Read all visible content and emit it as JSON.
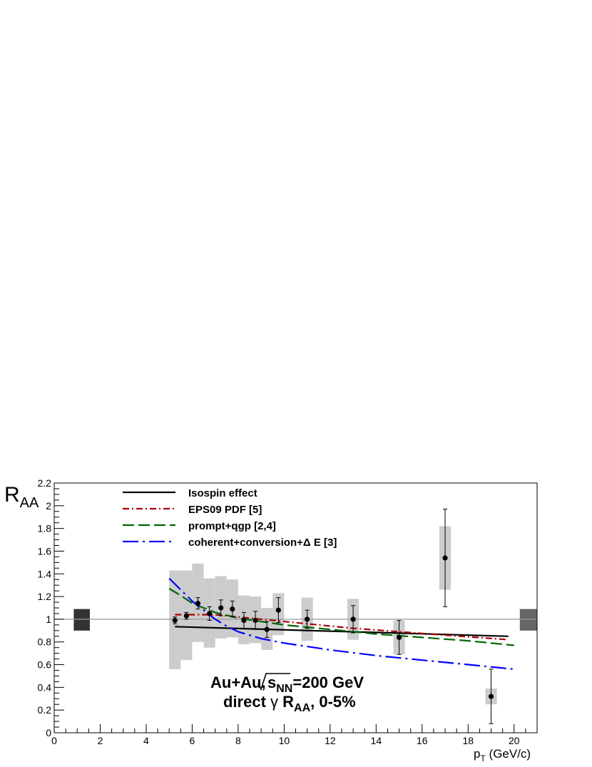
{
  "chart_data": {
    "type": "scatter",
    "xlabel": {
      "main": "p",
      "sub": "T",
      "unit": " (GeV/c)"
    },
    "ylabel": {
      "main": "R",
      "sub": "AA"
    },
    "xlim": [
      0,
      21
    ],
    "ylim": [
      0,
      2.2
    ],
    "xticks": [
      0,
      2,
      4,
      6,
      8,
      10,
      12,
      14,
      16,
      18,
      20
    ],
    "yticks": [
      0,
      0.2,
      0.4,
      0.6,
      0.8,
      1,
      1.2,
      1.4,
      1.6,
      1.8,
      2,
      2.2
    ],
    "reference_line": 1,
    "norm_boxes": [
      {
        "x": [
          0.85,
          1.55
        ],
        "y": [
          0.9,
          1.09
        ],
        "color": "#333333"
      },
      {
        "x": [
          20.25,
          21.0
        ],
        "y": [
          0.9,
          1.09
        ],
        "color": "#666666"
      }
    ],
    "data_points": [
      {
        "x": 5.25,
        "y": 0.99,
        "err": 0.03,
        "sys_y": [
          0.56,
          1.43
        ],
        "sys_x": [
          5.0,
          5.5
        ]
      },
      {
        "x": 5.75,
        "y": 1.03,
        "err": 0.03,
        "sys_y": [
          0.64,
          1.43
        ],
        "sys_x": [
          5.5,
          6.0
        ]
      },
      {
        "x": 6.25,
        "y": 1.14,
        "err": 0.05,
        "sys_y": [
          0.8,
          1.49
        ],
        "sys_x": [
          6.0,
          6.5
        ]
      },
      {
        "x": 6.75,
        "y": 1.05,
        "err": 0.06,
        "sys_y": [
          0.75,
          1.36
        ],
        "sys_x": [
          6.5,
          7.0
        ]
      },
      {
        "x": 7.25,
        "y": 1.1,
        "err": 0.07,
        "sys_y": [
          0.83,
          1.38
        ],
        "sys_x": [
          7.0,
          7.5
        ]
      },
      {
        "x": 7.75,
        "y": 1.09,
        "err": 0.07,
        "sys_y": [
          0.84,
          1.35
        ],
        "sys_x": [
          7.5,
          8.0
        ]
      },
      {
        "x": 8.25,
        "y": 0.99,
        "err": 0.07,
        "sys_y": [
          0.78,
          1.21
        ],
        "sys_x": [
          8.0,
          8.5
        ]
      },
      {
        "x": 8.75,
        "y": 0.99,
        "err": 0.08,
        "sys_y": [
          0.79,
          1.2
        ],
        "sys_x": [
          8.5,
          9.0
        ]
      },
      {
        "x": 9.25,
        "y": 0.91,
        "err": 0.07,
        "sys_y": [
          0.73,
          1.1
        ],
        "sys_x": [
          9.0,
          9.5
        ]
      },
      {
        "x": 9.75,
        "y": 1.08,
        "err": 0.11,
        "sys_y": [
          0.86,
          1.23
        ],
        "sys_x": [
          9.5,
          10.0
        ]
      },
      {
        "x": 11.0,
        "y": 1.0,
        "err": 0.08,
        "sys_y": [
          0.81,
          1.19
        ],
        "sys_x": [
          10.75,
          11.25
        ]
      },
      {
        "x": 13.0,
        "y": 1.0,
        "err": 0.12,
        "sys_y": [
          0.82,
          1.18
        ],
        "sys_x": [
          12.75,
          13.25
        ]
      },
      {
        "x": 15.0,
        "y": 0.84,
        "err": 0.15,
        "sys_y": [
          0.69,
          0.99
        ],
        "sys_x": [
          14.75,
          15.25
        ]
      },
      {
        "x": 17.0,
        "y": 1.54,
        "err": 0.43,
        "sys_y": [
          1.26,
          1.82
        ],
        "sys_x": [
          16.75,
          17.25
        ]
      },
      {
        "x": 19.0,
        "y": 0.32,
        "err": 0.24,
        "sys_y": [
          0.25,
          0.39
        ],
        "sys_x": [
          18.75,
          19.25
        ]
      }
    ],
    "series": [
      {
        "name": "Isospin effect",
        "color": "#000000",
        "dash": "solid",
        "x": [
          5.25,
          19.75
        ],
        "y": [
          0.935,
          0.85
        ]
      },
      {
        "name": "EPS09 PDF [5]",
        "color": "#aa0000",
        "dash": "dashdot",
        "x": [
          5.25,
          7,
          9,
          11,
          13,
          15,
          17,
          19.75
        ],
        "y": [
          1.04,
          1.04,
          1.0,
          0.96,
          0.92,
          0.89,
          0.86,
          0.82
        ]
      },
      {
        "name": "prompt+qgp [2,4]",
        "color": "#006600",
        "dash": "longdash",
        "x": [
          5.0,
          5.5,
          6,
          6.5,
          7,
          8,
          9,
          10,
          12,
          14,
          16,
          18,
          20
        ],
        "y": [
          1.27,
          1.21,
          1.14,
          1.1,
          1.06,
          1.01,
          0.98,
          0.95,
          0.91,
          0.87,
          0.84,
          0.81,
          0.77
        ]
      },
      {
        "name": "coherent+conversion+Δ E [3]",
        "color": "#0000ff",
        "dash": "longdashdot",
        "x": [
          5.0,
          5.5,
          6,
          6.5,
          7,
          7.5,
          8,
          8.5,
          9,
          10,
          12,
          14,
          16,
          18,
          20
        ],
        "y": [
          1.36,
          1.26,
          1.16,
          1.08,
          1.0,
          0.94,
          0.89,
          0.86,
          0.83,
          0.79,
          0.73,
          0.68,
          0.64,
          0.6,
          0.56
        ]
      }
    ],
    "legend_position": "top-left",
    "annotations": {
      "line1_prefix": "Au+Au,",
      "line1_sqrt": "s",
      "line1_sub": "NN",
      "line1_suffix": "=200 GeV",
      "line2_prefix": "direct ",
      "line2_gamma": "γ",
      "line2_r": " R",
      "line2_sub": "AA",
      "line2_suffix": ", 0-5%"
    }
  }
}
